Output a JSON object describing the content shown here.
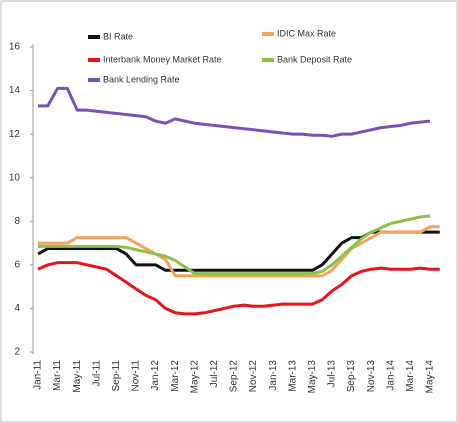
{
  "chart_data": {
    "type": "line",
    "categories": [
      "Jan-11",
      null,
      "Mar-11",
      null,
      "May-11",
      null,
      "Jul-11",
      null,
      "Sep-11",
      null,
      "Nov-11",
      null,
      "Jan-12",
      null,
      "Mar-12",
      null,
      "May-12",
      null,
      "Jul-12",
      null,
      "Sep-12",
      null,
      "Nov-12",
      null,
      "Jan-13",
      null,
      "Mar-13",
      null,
      "May-13",
      null,
      "Jul-13",
      null,
      "Sep-13",
      null,
      "Nov-13",
      null,
      "Jan-14",
      null,
      "Mar-14",
      null,
      "May-14",
      null
    ],
    "series": [
      {
        "name": "BI Rate",
        "color": "#111111",
        "values": [
          6.5,
          6.75,
          6.75,
          6.75,
          6.75,
          6.75,
          6.75,
          6.75,
          6.75,
          6.5,
          6.0,
          6.0,
          6.0,
          5.75,
          5.75,
          5.75,
          5.75,
          5.75,
          5.75,
          5.75,
          5.75,
          5.75,
          5.75,
          5.75,
          5.75,
          5.75,
          5.75,
          5.75,
          5.75,
          6.0,
          6.5,
          7.0,
          7.25,
          7.25,
          7.5,
          7.5,
          7.5,
          7.5,
          7.5,
          7.5,
          7.5,
          7.5
        ]
      },
      {
        "name": "IDIC Max Rate",
        "color": "#f7a25a",
        "values": [
          7.0,
          7.0,
          7.0,
          7.0,
          7.25,
          7.25,
          7.25,
          7.25,
          7.25,
          7.25,
          7.0,
          6.75,
          6.5,
          6.25,
          5.5,
          5.5,
          5.5,
          5.5,
          5.5,
          5.5,
          5.5,
          5.5,
          5.5,
          5.5,
          5.5,
          5.5,
          5.5,
          5.5,
          5.5,
          5.5,
          5.75,
          6.25,
          6.75,
          7.0,
          7.25,
          7.5,
          7.5,
          7.5,
          7.5,
          7.5,
          7.75,
          7.75
        ]
      },
      {
        "name": "Interbank Money Market Rate",
        "color": "#e8141b",
        "values": [
          5.8,
          6.0,
          6.1,
          6.1,
          6.1,
          6.0,
          5.9,
          5.8,
          5.5,
          5.2,
          4.9,
          4.6,
          4.4,
          4.0,
          3.8,
          3.75,
          3.75,
          3.8,
          3.9,
          4.0,
          4.1,
          4.15,
          4.1,
          4.1,
          4.15,
          4.2,
          4.2,
          4.2,
          4.2,
          4.4,
          4.8,
          5.1,
          5.5,
          5.7,
          5.8,
          5.85,
          5.8,
          5.8,
          5.8,
          5.85,
          5.8,
          5.8
        ]
      },
      {
        "name": "Bank Deposit Rate",
        "color": "#8cc04a",
        "values": [
          6.85,
          6.85,
          6.85,
          6.85,
          6.85,
          6.85,
          6.85,
          6.85,
          6.85,
          6.8,
          6.7,
          6.6,
          6.5,
          6.4,
          6.2,
          5.9,
          5.6,
          5.6,
          5.6,
          5.6,
          5.6,
          5.6,
          5.6,
          5.6,
          5.6,
          5.6,
          5.6,
          5.6,
          5.6,
          5.7,
          6.0,
          6.4,
          6.8,
          7.2,
          7.5,
          7.7,
          7.9,
          8.0,
          8.1,
          8.2,
          8.25,
          null
        ]
      },
      {
        "name": "Bank Lending Rate",
        "color": "#7b4fb5",
        "values": [
          13.3,
          13.3,
          14.1,
          14.1,
          13.1,
          13.1,
          13.05,
          13.0,
          12.95,
          12.9,
          12.85,
          12.8,
          12.6,
          12.5,
          12.7,
          12.6,
          12.5,
          12.45,
          12.4,
          12.35,
          12.3,
          12.25,
          12.2,
          12.15,
          12.1,
          12.05,
          12.0,
          12.0,
          11.95,
          11.95,
          11.9,
          12.0,
          12.0,
          12.1,
          12.2,
          12.3,
          12.35,
          12.4,
          12.5,
          12.55,
          12.6,
          null
        ]
      }
    ],
    "ylim": [
      2,
      16
    ],
    "yticks": [
      2,
      4,
      6,
      8,
      10,
      12,
      14,
      16
    ]
  }
}
